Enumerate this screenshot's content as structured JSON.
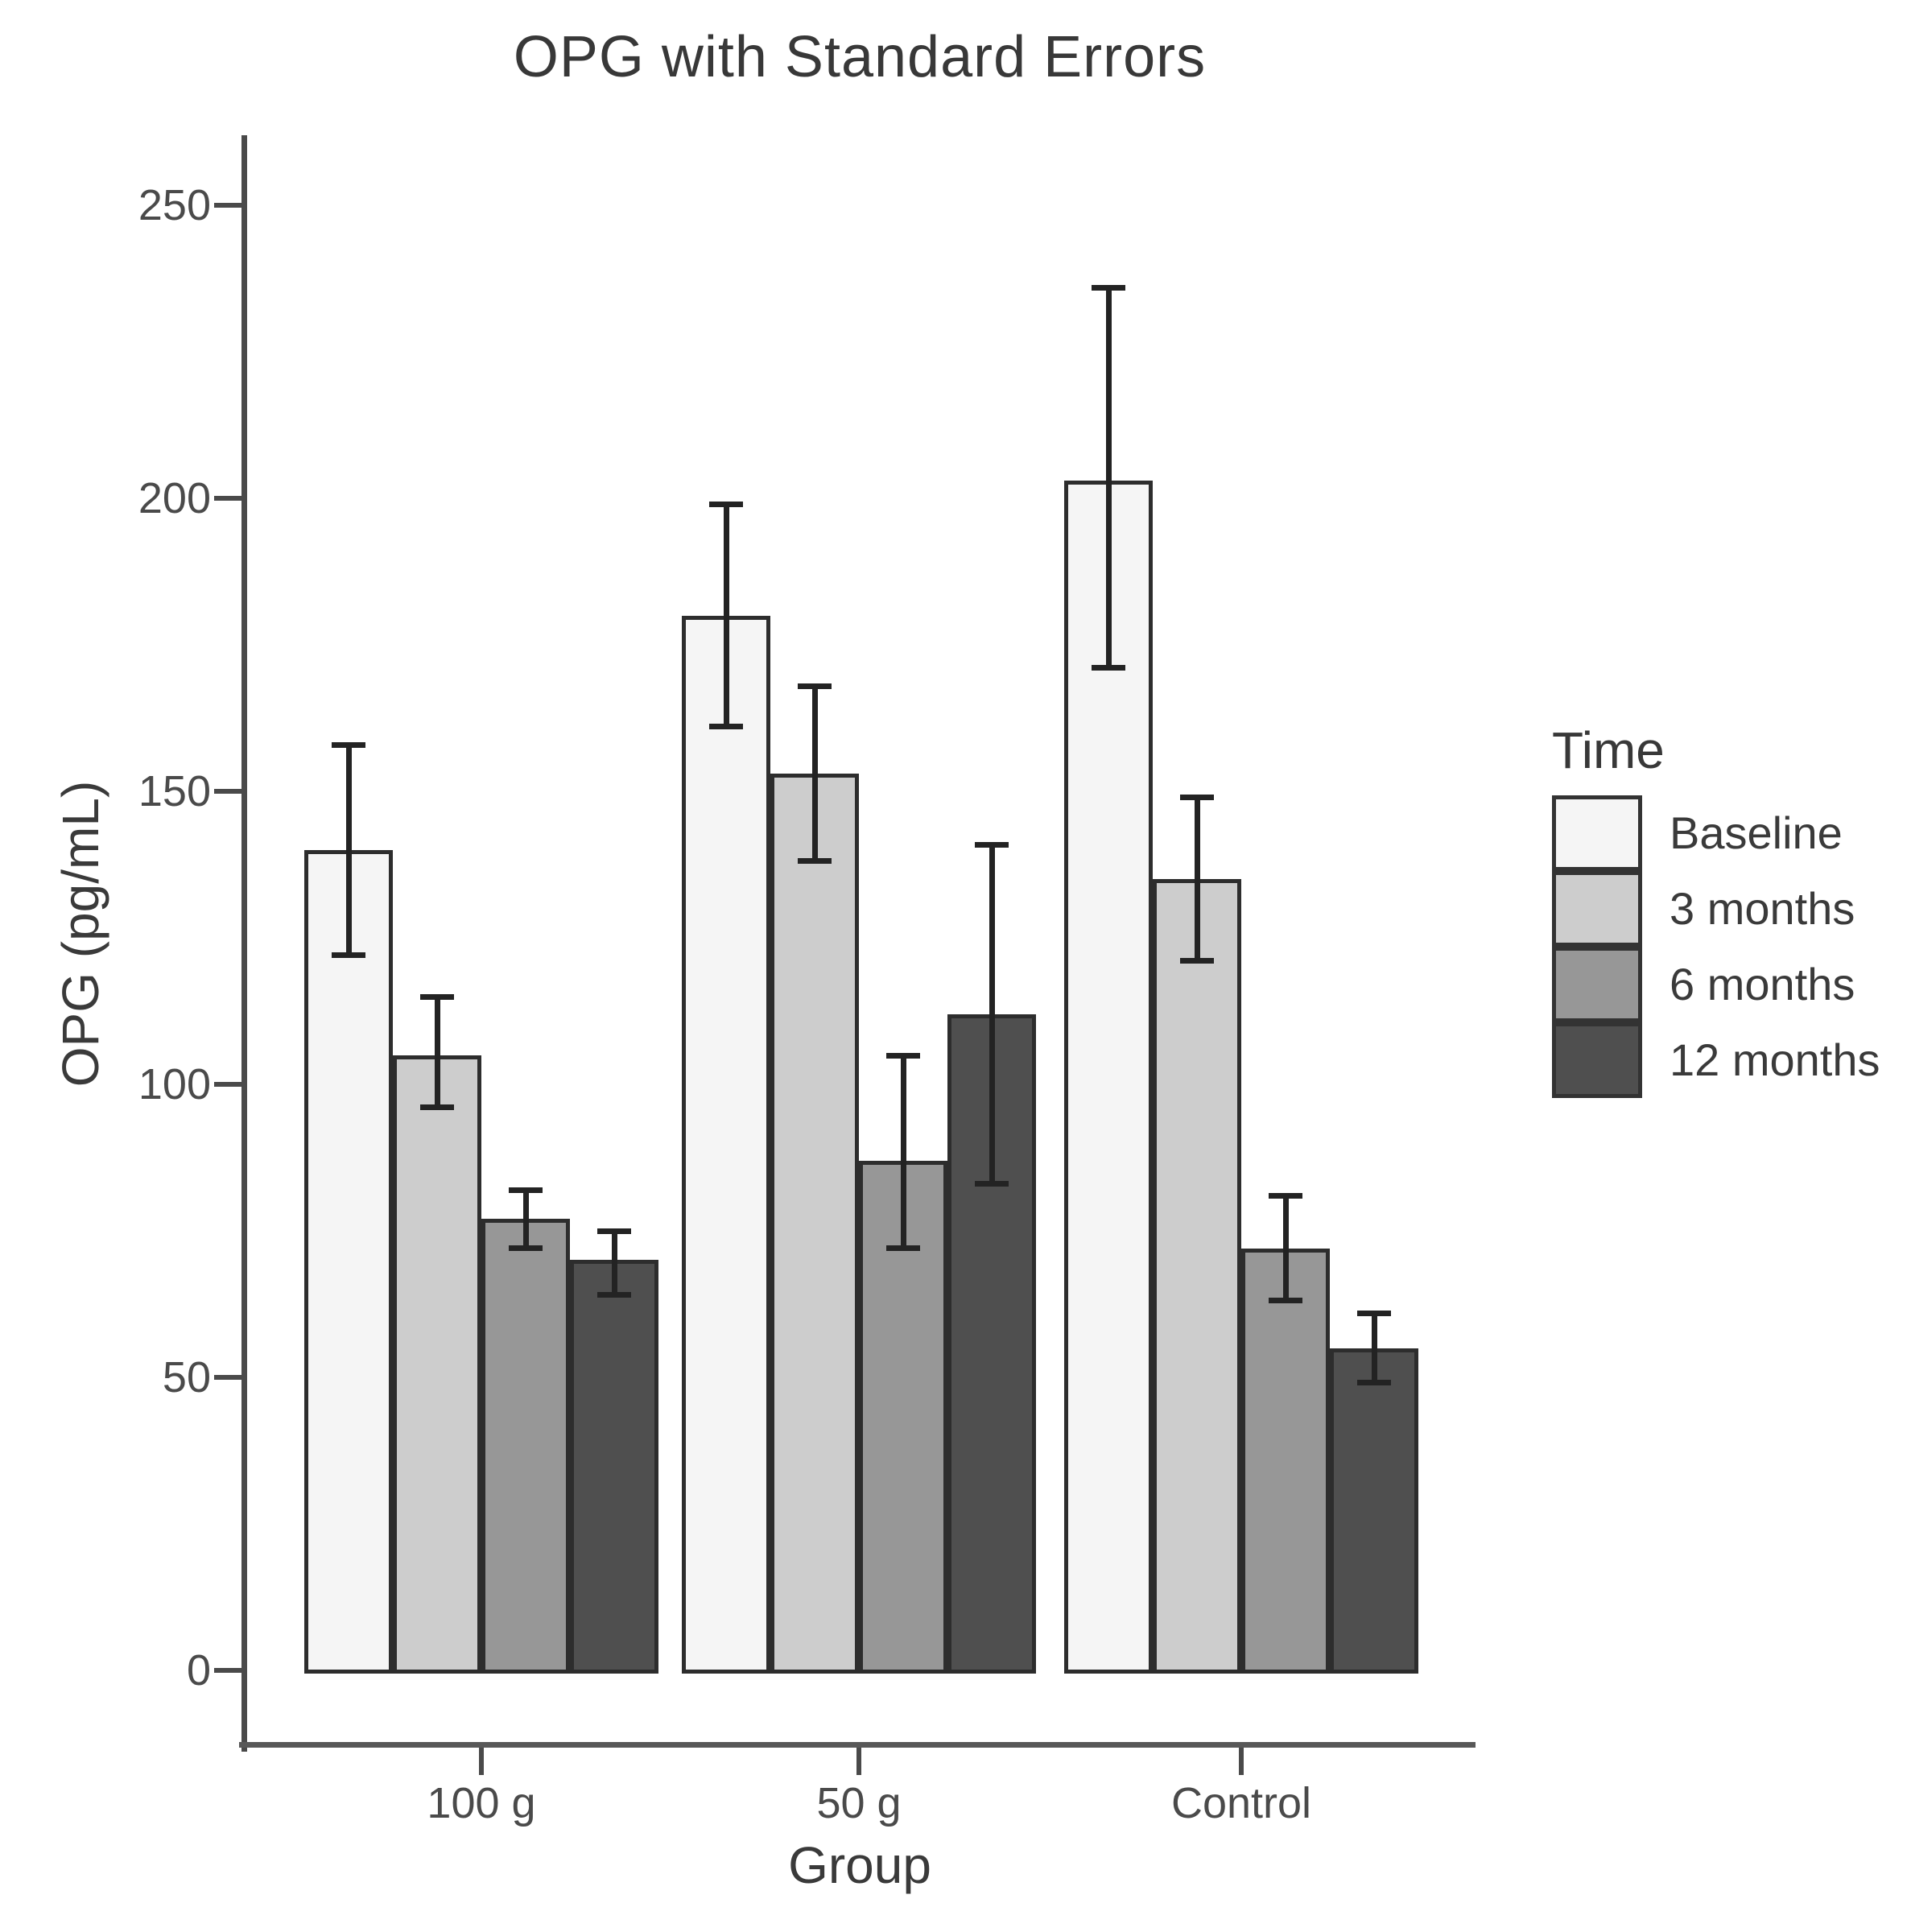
{
  "chart_data": {
    "type": "bar",
    "title": "OPG with Standard Errors",
    "xlabel": "Group",
    "ylabel": "OPG (pg/mL)",
    "ylim": [
      0,
      265
    ],
    "y_ticks": [
      0,
      50,
      100,
      150,
      200,
      250
    ],
    "categories": [
      "100 g",
      "50 g",
      "Control"
    ],
    "legend_title": "Time",
    "legend_position": "right",
    "grid": false,
    "series": [
      {
        "name": "Baseline",
        "color": "#f5f5f5",
        "values": [
          140,
          180,
          203
        ],
        "err_low": [
          122,
          161,
          171
        ],
        "err_high": [
          158,
          199,
          236
        ]
      },
      {
        "name": "3 months",
        "color": "#cdcdcd",
        "values": [
          105,
          153,
          135
        ],
        "err_low": [
          96,
          138,
          121
        ],
        "err_high": [
          115,
          168,
          149
        ]
      },
      {
        "name": "6 months",
        "color": "#979797",
        "values": [
          77,
          87,
          72
        ],
        "err_low": [
          72,
          72,
          63
        ],
        "err_high": [
          82,
          105,
          81
        ]
      },
      {
        "name": "12 months",
        "color": "#4f4f4f",
        "values": [
          70,
          112,
          55
        ],
        "err_low": [
          64,
          83,
          49
        ],
        "err_high": [
          75,
          141,
          61
        ]
      }
    ],
    "bar_border_color": "#2d2d2d",
    "error_bar_color": "#232323"
  },
  "colors": {
    "background": "#ffffff",
    "axis_line": "#4a4a4a",
    "tick_label": "#4a4a4a",
    "title_text": "#383838"
  }
}
